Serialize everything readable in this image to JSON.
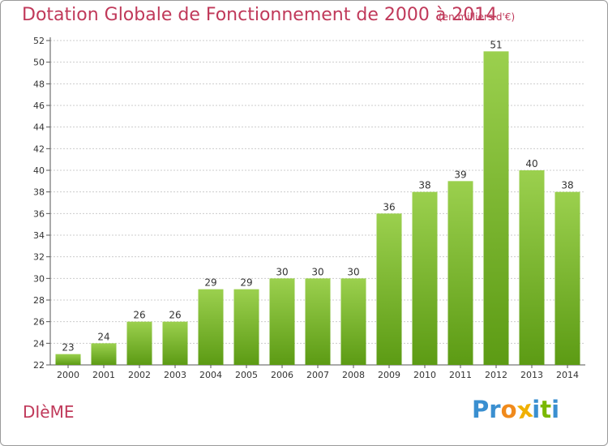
{
  "chart": {
    "title": "Dotation Globale de Fonctionnement de 2000 à 2014",
    "subtitle": "(en milliers d'€)",
    "commune": "DIèME"
  },
  "brand": {
    "name": "Proxiti",
    "letters": [
      {
        "ch": "P",
        "color": "#3a8fd0"
      },
      {
        "ch": "r",
        "color": "#3a8fd0"
      },
      {
        "ch": "o",
        "color": "#f08a1c"
      },
      {
        "ch": "x",
        "color": "#f0b000"
      },
      {
        "ch": "i",
        "color": "#3a8fd0"
      },
      {
        "ch": "t",
        "color": "#7ab800"
      },
      {
        "ch": "i",
        "color": "#3a8fd0"
      }
    ]
  },
  "colors": {
    "bar_light": "#9bd04e",
    "bar_dark": "#5c9b14",
    "title": "#c0395a",
    "grid": "#cccccc"
  },
  "chart_data": {
    "type": "bar",
    "title": "Dotation Globale de Fonctionnement de 2000 à 2014",
    "subtitle": "(en milliers d'€)",
    "categories": [
      "2000",
      "2001",
      "2002",
      "2003",
      "2004",
      "2005",
      "2006",
      "2007",
      "2008",
      "2009",
      "2010",
      "2011",
      "2012",
      "2013",
      "2014"
    ],
    "values": [
      23,
      24,
      26,
      26,
      29,
      29,
      30,
      30,
      30,
      36,
      38,
      39,
      51,
      40,
      38
    ],
    "ylim": [
      22,
      52
    ],
    "yticks": [
      22,
      24,
      26,
      28,
      30,
      32,
      34,
      36,
      38,
      40,
      42,
      44,
      46,
      48,
      50,
      52
    ],
    "grid": true,
    "legend": "none"
  }
}
